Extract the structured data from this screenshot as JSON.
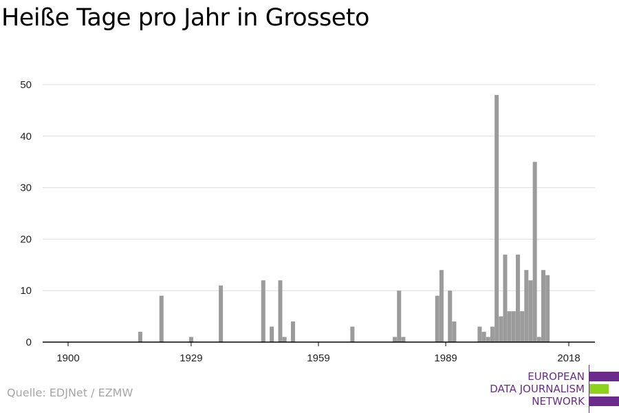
{
  "title": "Heiße Tage pro Jahr in Grosseto",
  "source": "Quelle: EDJNet / EZMW",
  "logo": {
    "lines": [
      "EUROPEAN",
      "DATA JOURNALISM",
      "NETWORK"
    ],
    "colors": {
      "purple": "#6a2b8c",
      "green": "#8fd11f"
    }
  },
  "colors": {
    "bar": "#9b9b9b",
    "grid": "#dcdcdc",
    "axis": "#000000",
    "text": "#222222"
  },
  "chart_data": {
    "type": "bar",
    "title": "Heiße Tage pro Jahr in Grosseto",
    "xlabel": "",
    "ylabel": "",
    "xlim": [
      1894,
      2022
    ],
    "ylim": [
      0,
      50
    ],
    "x_ticks": [
      1900,
      1929,
      1959,
      1989,
      2018
    ],
    "y_ticks": [
      0,
      10,
      20,
      30,
      40,
      50
    ],
    "grid": true,
    "legend": "none",
    "x": [
      1917,
      1922,
      1929,
      1936,
      1946,
      1948,
      1950,
      1951,
      1953,
      1967,
      1977,
      1978,
      1979,
      1987,
      1988,
      1990,
      1991,
      1997,
      1998,
      1999,
      2000,
      2001,
      2002,
      2003,
      2004,
      2005,
      2006,
      2007,
      2008,
      2009,
      2010,
      2011,
      2012,
      2013,
      2014,
      2015,
      2016,
      2017
    ],
    "values": [
      2,
      9,
      1,
      11,
      12,
      3,
      12,
      1,
      4,
      3,
      1,
      10,
      1,
      9,
      14,
      10,
      4,
      3,
      2,
      1,
      3,
      48,
      5,
      17,
      6,
      6,
      17,
      6,
      14,
      12,
      35,
      1,
      14,
      13,
      0,
      0,
      0,
      0
    ]
  }
}
